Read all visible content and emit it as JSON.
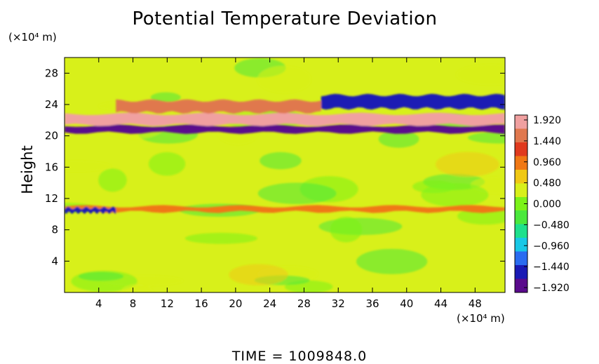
{
  "chart_data": {
    "type": "heatmap",
    "title": "Potential Temperature Deviation",
    "ylabel": "Height",
    "xunit": "(×10⁴ m)",
    "yunit": "(×10⁴ m)",
    "xlim": [
      0,
      51.5
    ],
    "ylim": [
      0,
      30
    ],
    "x_ticks": [
      "4",
      "8",
      "12",
      "16",
      "20",
      "24",
      "28",
      "32",
      "36",
      "40",
      "44",
      "48"
    ],
    "y_ticks": [
      "4",
      "8",
      "12",
      "16",
      "20",
      "24",
      "28"
    ],
    "colorbar": {
      "range": [
        -1.92,
        1.92
      ],
      "labels": [
        "1.920",
        "1.440",
        "0.960",
        "0.480",
        "0.000",
        "−0.480",
        "−0.960",
        "−1.440",
        "−1.920"
      ],
      "colors": [
        "#5a0a8c",
        "#1a1ab4",
        "#2a6cf0",
        "#18c8e6",
        "#1ee08c",
        "#4ae83c",
        "#7cf21a",
        "#d8f01a",
        "#f0c814",
        "#f07814",
        "#e03a1e",
        "#e0784e",
        "#f0a0a0"
      ]
    },
    "field_description": [
      {
        "feature": "background",
        "value": 0.2
      },
      {
        "feature": "strong negative layer",
        "y_range": [
          20.4,
          21.3
        ],
        "value": -1.92
      },
      {
        "feature": "strong positive layer",
        "y_range": [
          21.4,
          22.8
        ],
        "value": 1.9
      },
      {
        "feature": "negative band aloft",
        "y_range": [
          23.5,
          25.2
        ],
        "x_range": [
          30,
          51.5
        ],
        "value": -1.5
      },
      {
        "feature": "positive band aloft",
        "y_range": [
          23,
          24.5
        ],
        "x_range": [
          6,
          30
        ],
        "value": 1.6
      },
      {
        "feature": "mid-level disturbance",
        "y_range": [
          10.3,
          11
        ],
        "value": 1.0
      },
      {
        "feature": "negative streak",
        "y_range": [
          10.2,
          10.8
        ],
        "x_range": [
          0,
          6
        ],
        "value": -1.4
      }
    ]
  },
  "time_text": "TIME  =  1009848.0"
}
